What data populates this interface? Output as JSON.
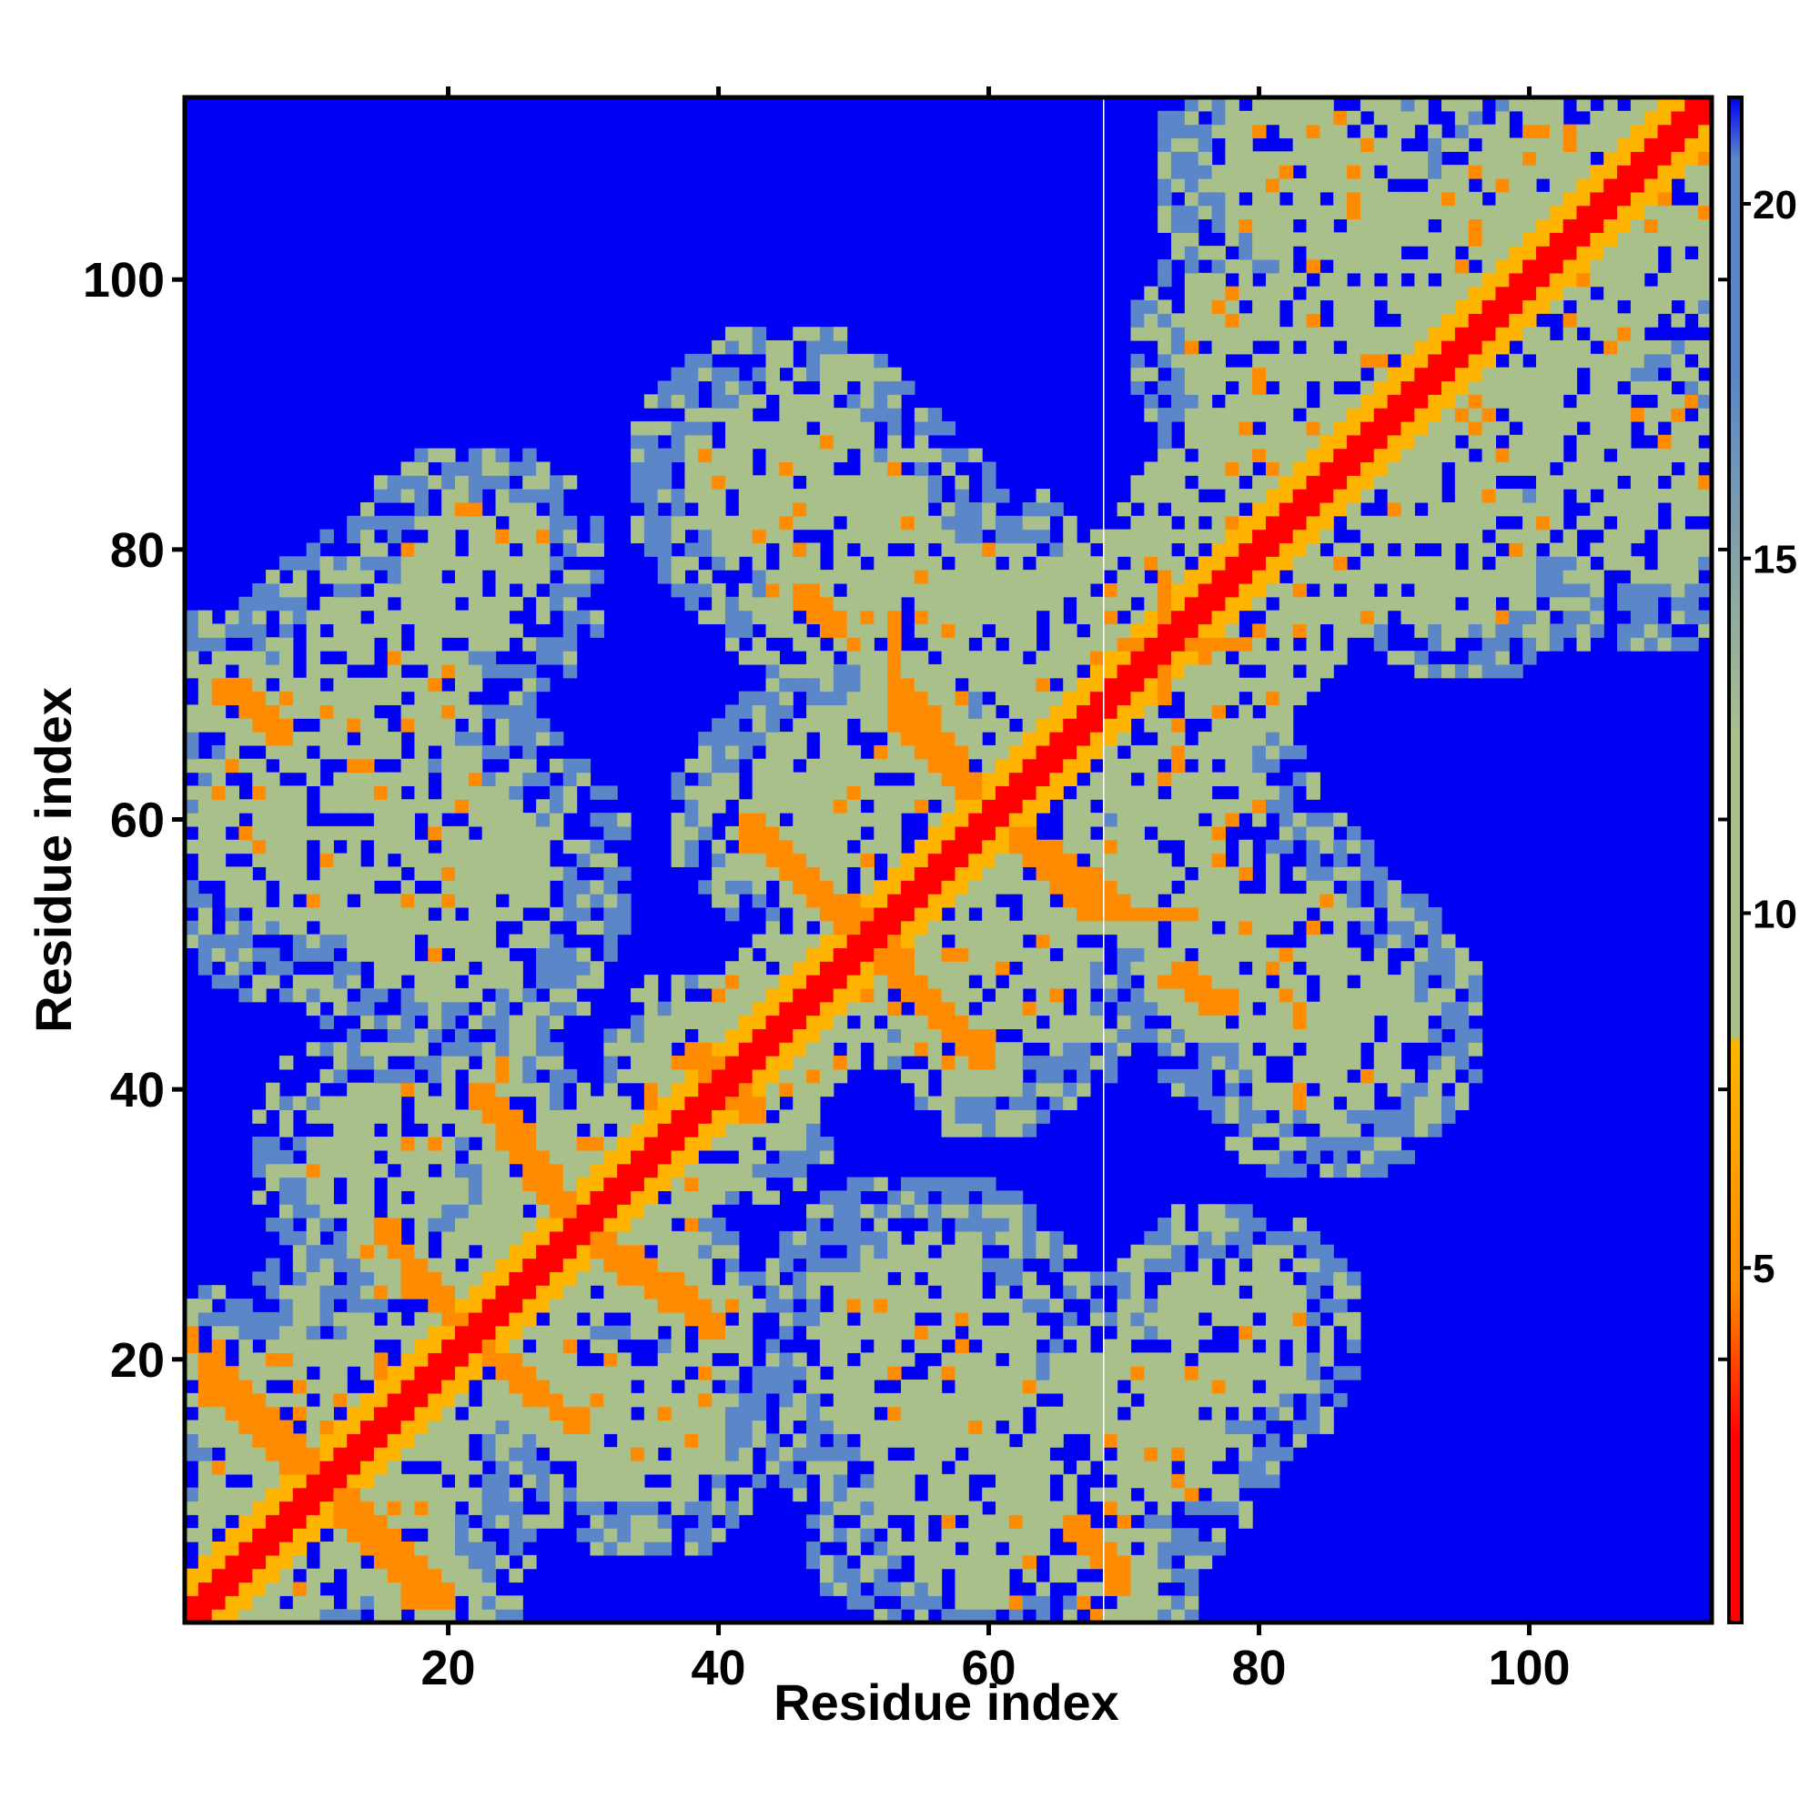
{
  "chart_data": {
    "type": "heatmap",
    "title": "",
    "xlabel": "Residue index",
    "ylabel": "Residue index",
    "n_residues": 113,
    "xlim": [
      0.5,
      113.5
    ],
    "ylim": [
      0.5,
      113.5
    ],
    "x_ticks": [
      20,
      40,
      60,
      80,
      100
    ],
    "y_ticks": [
      20,
      40,
      60,
      80,
      100
    ],
    "colorbar": {
      "ticks": [
        5,
        10,
        15,
        20
      ],
      "range": [
        0,
        21.5
      ],
      "colors": {
        "very_close": "#ff0000",
        "close": "#ff8c00",
        "near": "#ffb400",
        "mid": "#a9c08a",
        "far": "#5b86c8",
        "none": "#0000f5"
      }
    },
    "gap_column": 68.5,
    "structure": {
      "diagonal": "red band along residue i = j",
      "contacts": [
        {
          "from": [
            2,
            20
          ],
          "to": [
            10,
            12
          ],
          "level": "close"
        },
        {
          "from": [
            12,
            9
          ],
          "to": [
            18,
            2
          ],
          "level": "close"
        },
        {
          "from": [
            17,
            27
          ],
          "to": [
            22,
            21
          ],
          "level": "close"
        },
        {
          "from": [
            23,
            40
          ],
          "to": [
            30,
            30
          ],
          "level": "close"
        },
        {
          "from": [
            24,
            20
          ],
          "to": [
            30,
            15
          ],
          "level": "close"
        },
        {
          "from": [
            31,
            28
          ],
          "to": [
            40,
            22
          ],
          "level": "close"
        },
        {
          "from": [
            38,
            43
          ],
          "to": [
            42,
            39
          ],
          "level": "close"
        },
        {
          "from": [
            42,
            60
          ],
          "to": [
            50,
            52
          ],
          "level": "close"
        },
        {
          "from": [
            52,
            51
          ],
          "to": [
            60,
            42
          ],
          "level": "close"
        },
        {
          "from": [
            54,
            70
          ],
          "to": [
            59,
            62
          ],
          "level": "close"
        },
        {
          "from": [
            62,
            59
          ],
          "to": [
            68,
            53
          ],
          "level": "close"
        },
        {
          "from": [
            68,
            53
          ],
          "to": [
            75,
            53
          ],
          "level": "close"
        },
        {
          "from": [
            67,
            7
          ],
          "to": [
            70,
            4
          ],
          "level": "close"
        },
        {
          "from": [
            3,
            70
          ],
          "to": [
            8,
            66
          ],
          "level": "close"
        },
        {
          "from": [
            70,
            73
          ],
          "to": [
            78,
            73
          ],
          "level": "close"
        },
        {
          "from": [
            74,
            49
          ],
          "to": [
            77,
            46
          ],
          "level": "close"
        }
      ]
    }
  }
}
